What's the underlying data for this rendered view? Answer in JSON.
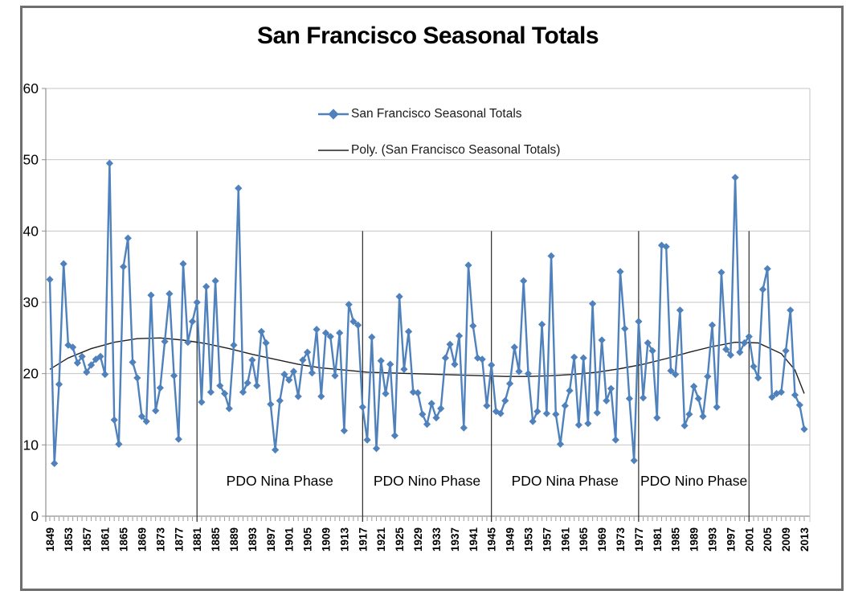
{
  "title": "San Francisco Seasonal Totals",
  "legend": {
    "series_label": "San Francisco Seasonal Totals",
    "poly_label": "Poly. (San Francisco Seasonal Totals)"
  },
  "colors": {
    "series_blue": "#4F81BD",
    "poly_black": "#1f1f1f",
    "gridline": "#c4c4c4",
    "axis": "#8f8f8f",
    "tick": "#9a9a9a",
    "text": "#000000",
    "frame_border": "#6e6e6e",
    "phase_line": "#2b2b2b"
  },
  "chart_data": {
    "type": "line",
    "title": "San Francisco Seasonal Totals",
    "xlabel": "",
    "ylabel": "",
    "x_start": 1849,
    "x_end": 2013,
    "ylim": [
      0,
      60
    ],
    "y_ticks": [
      0,
      10,
      20,
      30,
      40,
      50,
      60
    ],
    "grid": true,
    "legend_position": "top-center-inside",
    "x_tick_labels": [
      1849,
      1853,
      1857,
      1861,
      1865,
      1869,
      1873,
      1877,
      1881,
      1885,
      1889,
      1893,
      1897,
      1901,
      1905,
      1909,
      1913,
      1917,
      1921,
      1925,
      1929,
      1933,
      1937,
      1941,
      1945,
      1949,
      1953,
      1957,
      1961,
      1965,
      1969,
      1973,
      1977,
      1981,
      1985,
      1989,
      1993,
      1997,
      2001,
      2005,
      2009,
      2013
    ],
    "series": [
      {
        "name": "San Francisco Seasonal Totals",
        "color": "#4F81BD",
        "marker": "diamond",
        "x_first_year": 1849,
        "values": [
          33.2,
          7.4,
          18.5,
          35.4,
          24.0,
          23.7,
          21.5,
          22.4,
          20.2,
          21.2,
          22.0,
          22.4,
          19.9,
          49.5,
          13.5,
          10.1,
          35.0,
          39.0,
          21.6,
          19.4,
          14.0,
          13.3,
          31.0,
          14.8,
          18.0,
          24.5,
          31.2,
          19.7,
          10.8,
          35.4,
          24.4,
          27.3,
          30.0,
          16.0,
          32.2,
          17.4,
          33.0,
          18.3,
          17.2,
          15.1,
          24.0,
          46.0,
          17.4,
          18.7,
          21.9,
          18.3,
          25.9,
          24.3,
          15.7,
          9.3,
          16.2,
          19.9,
          19.1,
          20.3,
          16.8,
          21.9,
          23.0,
          20.1,
          26.2,
          16.8,
          25.7,
          25.2,
          19.7,
          25.7,
          12.0,
          29.7,
          27.3,
          26.8,
          15.3,
          10.7,
          25.1,
          9.5,
          21.8,
          17.2,
          21.3,
          11.3,
          30.8,
          20.6,
          25.9,
          17.4,
          17.3,
          14.3,
          12.9,
          15.8,
          13.8,
          15.1,
          22.2,
          24.1,
          21.3,
          25.3,
          12.4,
          35.2,
          26.7,
          22.2,
          22.0,
          15.5,
          21.2,
          14.7,
          14.4,
          16.2,
          18.6,
          23.7,
          20.3,
          33.0,
          20.0,
          13.3,
          14.7,
          26.9,
          14.4,
          36.5,
          14.3,
          10.1,
          15.5,
          17.6,
          22.3,
          12.8,
          22.2,
          13.0,
          29.8,
          14.5,
          24.7,
          16.2,
          17.9,
          10.7,
          34.3,
          26.3,
          16.5,
          7.8,
          27.3,
          16.6,
          24.3,
          23.2,
          13.8,
          38.0,
          37.8,
          20.4,
          19.9,
          28.9,
          12.7,
          14.3,
          18.2,
          16.5,
          14.0,
          19.6,
          26.8,
          15.3,
          34.2,
          23.4,
          22.6,
          47.5,
          23.0,
          24.3,
          25.2,
          21.0,
          19.4,
          31.8,
          34.7,
          16.7,
          17.2,
          17.4,
          23.2,
          28.9,
          17.0,
          15.6,
          12.2
        ]
      },
      {
        "name": "Poly. (San Francisco Seasonal Totals)",
        "color": "#1f1f1f",
        "type": "polynomial-trend",
        "points": [
          [
            1849,
            20.6
          ],
          [
            1853,
            22.2
          ],
          [
            1858,
            23.5
          ],
          [
            1863,
            24.4
          ],
          [
            1868,
            24.9
          ],
          [
            1873,
            25.0
          ],
          [
            1878,
            24.7
          ],
          [
            1883,
            24.2
          ],
          [
            1888,
            23.5
          ],
          [
            1893,
            22.7
          ],
          [
            1898,
            22.0
          ],
          [
            1903,
            21.3
          ],
          [
            1908,
            20.8
          ],
          [
            1913,
            20.5
          ],
          [
            1918,
            20.2
          ],
          [
            1923,
            20.1
          ],
          [
            1928,
            20.0
          ],
          [
            1933,
            19.9
          ],
          [
            1938,
            19.8
          ],
          [
            1943,
            19.7
          ],
          [
            1948,
            19.6
          ],
          [
            1953,
            19.6
          ],
          [
            1958,
            19.7
          ],
          [
            1963,
            19.9
          ],
          [
            1968,
            20.2
          ],
          [
            1973,
            20.7
          ],
          [
            1978,
            21.3
          ],
          [
            1983,
            22.1
          ],
          [
            1988,
            23.0
          ],
          [
            1993,
            23.8
          ],
          [
            1998,
            24.4
          ],
          [
            2003,
            24.3
          ],
          [
            2008,
            22.8
          ],
          [
            2011,
            20.5
          ],
          [
            2013,
            17.2
          ]
        ]
      }
    ],
    "annotations": {
      "phase_boundary_years": [
        1881,
        1917,
        1945,
        1977,
        2001
      ],
      "phase_labels": [
        {
          "text": "PDO Nina Phase",
          "from": 1881,
          "to": 1917
        },
        {
          "text": "PDO Nino Phase",
          "from": 1917,
          "to": 1945
        },
        {
          "text": "PDO Nina Phase",
          "from": 1945,
          "to": 1977
        },
        {
          "text": "PDO Nino Phase",
          "from": 1977,
          "to": 2001
        }
      ]
    }
  }
}
